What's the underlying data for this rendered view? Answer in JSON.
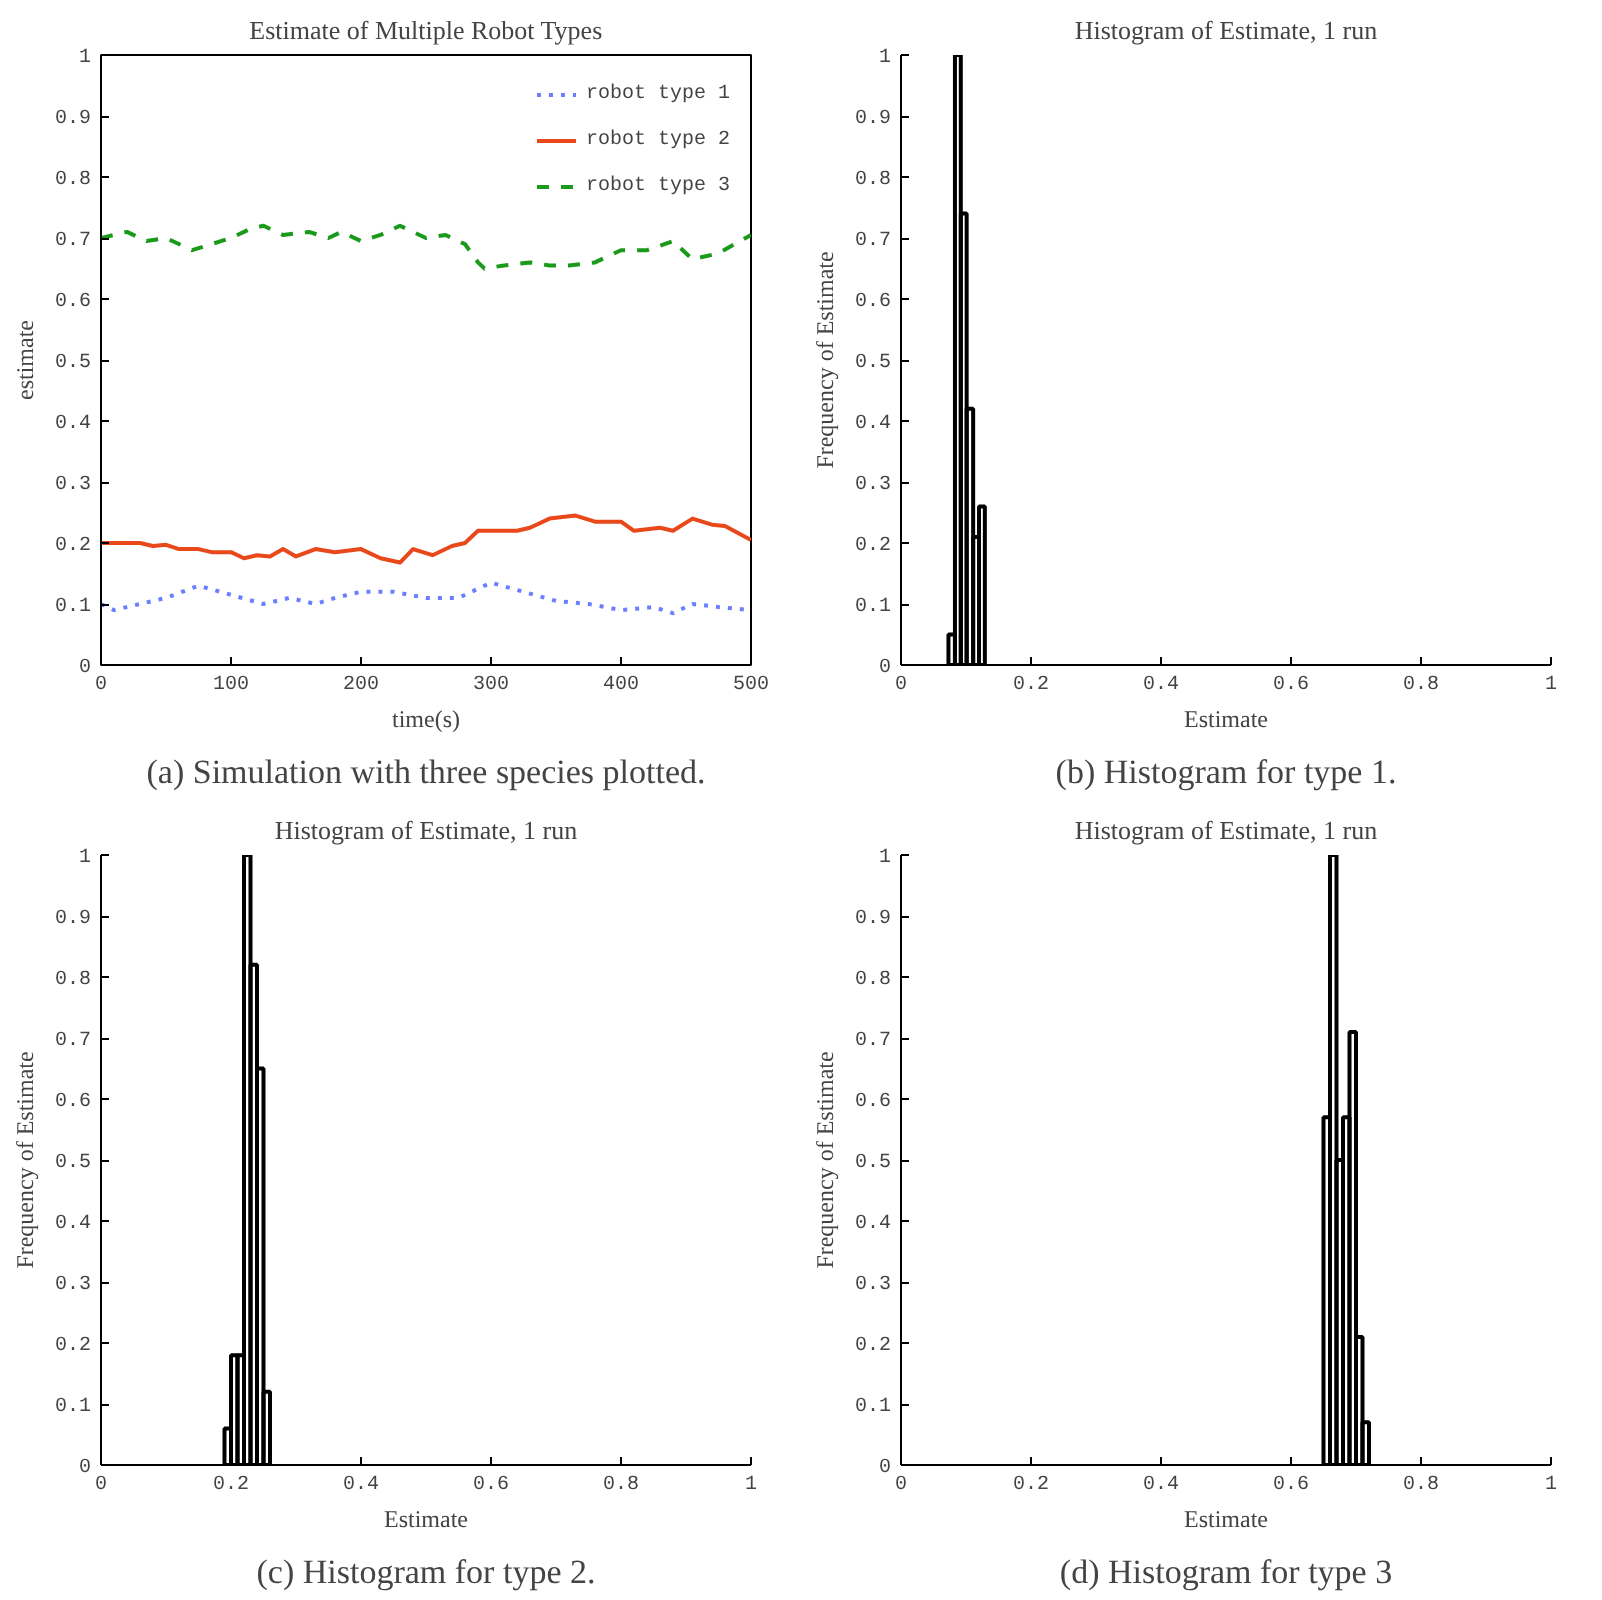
{
  "chart_data": [
    {
      "type": "line",
      "title": "Estimate of Multiple Robot Types",
      "xlabel": "time(s)",
      "ylabel": "estimate",
      "xlim": [
        0,
        500
      ],
      "xticks": [
        0,
        100,
        200,
        300,
        400,
        500
      ],
      "ylim": [
        0,
        1
      ],
      "yticks": [
        0,
        0.1,
        0.2,
        0.3,
        0.4,
        0.5,
        0.6,
        0.7,
        0.8,
        0.9,
        1
      ],
      "legend": "top right",
      "grid": false,
      "annotations": [
        "(a) Simulation with three species plotted."
      ],
      "series": [
        {
          "name": "robot type 1",
          "color": "#6a7fff",
          "line_style": "dotted",
          "x": [
            0,
            10,
            30,
            50,
            75,
            100,
            125,
            145,
            165,
            180,
            200,
            225,
            250,
            275,
            300,
            325,
            350,
            375,
            400,
            425,
            440,
            455,
            475,
            500
          ],
          "values": [
            0.1,
            0.09,
            0.1,
            0.11,
            0.13,
            0.115,
            0.1,
            0.11,
            0.1,
            0.11,
            0.12,
            0.12,
            0.11,
            0.11,
            0.135,
            0.12,
            0.105,
            0.1,
            0.09,
            0.095,
            0.085,
            0.1,
            0.095,
            0.09
          ]
        },
        {
          "name": "robot type 2",
          "color": "#e8481a",
          "line_style": "solid",
          "x": [
            0,
            30,
            40,
            50,
            60,
            75,
            85,
            100,
            110,
            120,
            130,
            140,
            150,
            165,
            180,
            200,
            215,
            230,
            240,
            255,
            270,
            280,
            290,
            305,
            320,
            330,
            345,
            365,
            380,
            400,
            410,
            430,
            440,
            455,
            470,
            480,
            500
          ],
          "values": [
            0.2,
            0.2,
            0.195,
            0.197,
            0.19,
            0.19,
            0.185,
            0.185,
            0.175,
            0.18,
            0.178,
            0.19,
            0.178,
            0.19,
            0.185,
            0.19,
            0.175,
            0.168,
            0.19,
            0.18,
            0.195,
            0.2,
            0.22,
            0.22,
            0.22,
            0.225,
            0.24,
            0.245,
            0.235,
            0.235,
            0.22,
            0.225,
            0.22,
            0.24,
            0.23,
            0.228,
            0.205
          ]
        },
        {
          "name": "robot type 3",
          "color": "#1a9a1a",
          "line_style": "dashed",
          "x": [
            0,
            20,
            35,
            50,
            70,
            100,
            115,
            125,
            140,
            160,
            175,
            185,
            200,
            215,
            230,
            250,
            265,
            280,
            290,
            295,
            310,
            330,
            345,
            360,
            380,
            400,
            420,
            440,
            455,
            475,
            500
          ],
          "values": [
            0.7,
            0.71,
            0.695,
            0.7,
            0.68,
            0.7,
            0.715,
            0.72,
            0.705,
            0.71,
            0.7,
            0.71,
            0.695,
            0.705,
            0.72,
            0.7,
            0.705,
            0.69,
            0.66,
            0.65,
            0.655,
            0.66,
            0.655,
            0.655,
            0.66,
            0.68,
            0.68,
            0.695,
            0.665,
            0.675,
            0.705
          ]
        }
      ]
    },
    {
      "type": "histogram",
      "title": "Histogram of Estimate, 1 run",
      "xlabel": "Estimate",
      "ylabel": "Frequency of Estimate",
      "xlim": [
        0,
        1
      ],
      "xticks": [
        0,
        0.2,
        0.4,
        0.6,
        0.8,
        1
      ],
      "ylim": [
        0,
        1
      ],
      "yticks": [
        0,
        0.1,
        0.2,
        0.3,
        0.4,
        0.5,
        0.6,
        0.7,
        0.8,
        0.9,
        1
      ],
      "grid": false,
      "color": "#000000",
      "annotations": [
        "(b) Histogram for type 1."
      ],
      "bins": [
        0.073,
        0.083,
        0.092,
        0.101,
        0.111,
        0.12,
        0.129
      ],
      "values": [
        0.05,
        1.0,
        0.74,
        0.42,
        0.21,
        0.26
      ]
    },
    {
      "type": "histogram",
      "title": "Histogram of Estimate, 1 run",
      "xlabel": "Estimate",
      "ylabel": "Frequency of Estimate",
      "xlim": [
        0,
        1
      ],
      "xticks": [
        0,
        0.2,
        0.4,
        0.6,
        0.8,
        1
      ],
      "ylim": [
        0,
        1
      ],
      "yticks": [
        0,
        0.1,
        0.2,
        0.3,
        0.4,
        0.5,
        0.6,
        0.7,
        0.8,
        0.9,
        1
      ],
      "grid": false,
      "color": "#000000",
      "annotations": [
        "(c) Histogram for type 2."
      ],
      "bins": [
        0.19,
        0.2,
        0.21,
        0.22,
        0.23,
        0.24,
        0.25,
        0.26
      ],
      "values": [
        0.06,
        0.18,
        0.18,
        1.0,
        0.82,
        0.65,
        0.12
      ]
    },
    {
      "type": "histogram",
      "title": "Histogram of Estimate, 1 run",
      "xlabel": "Estimate",
      "ylabel": "Frequency of Estimate",
      "xlim": [
        0,
        1
      ],
      "xticks": [
        0,
        0.2,
        0.4,
        0.6,
        0.8,
        1
      ],
      "ylim": [
        0,
        1
      ],
      "yticks": [
        0,
        0.1,
        0.2,
        0.3,
        0.4,
        0.5,
        0.6,
        0.7,
        0.8,
        0.9,
        1
      ],
      "grid": false,
      "color": "#000000",
      "annotations": [
        "(d) Histogram for type 3"
      ],
      "bins": [
        0.65,
        0.66,
        0.67,
        0.68,
        0.69,
        0.7,
        0.71,
        0.72
      ],
      "values": [
        0.57,
        1.0,
        0.5,
        0.57,
        0.71,
        0.21,
        0.07
      ]
    }
  ]
}
